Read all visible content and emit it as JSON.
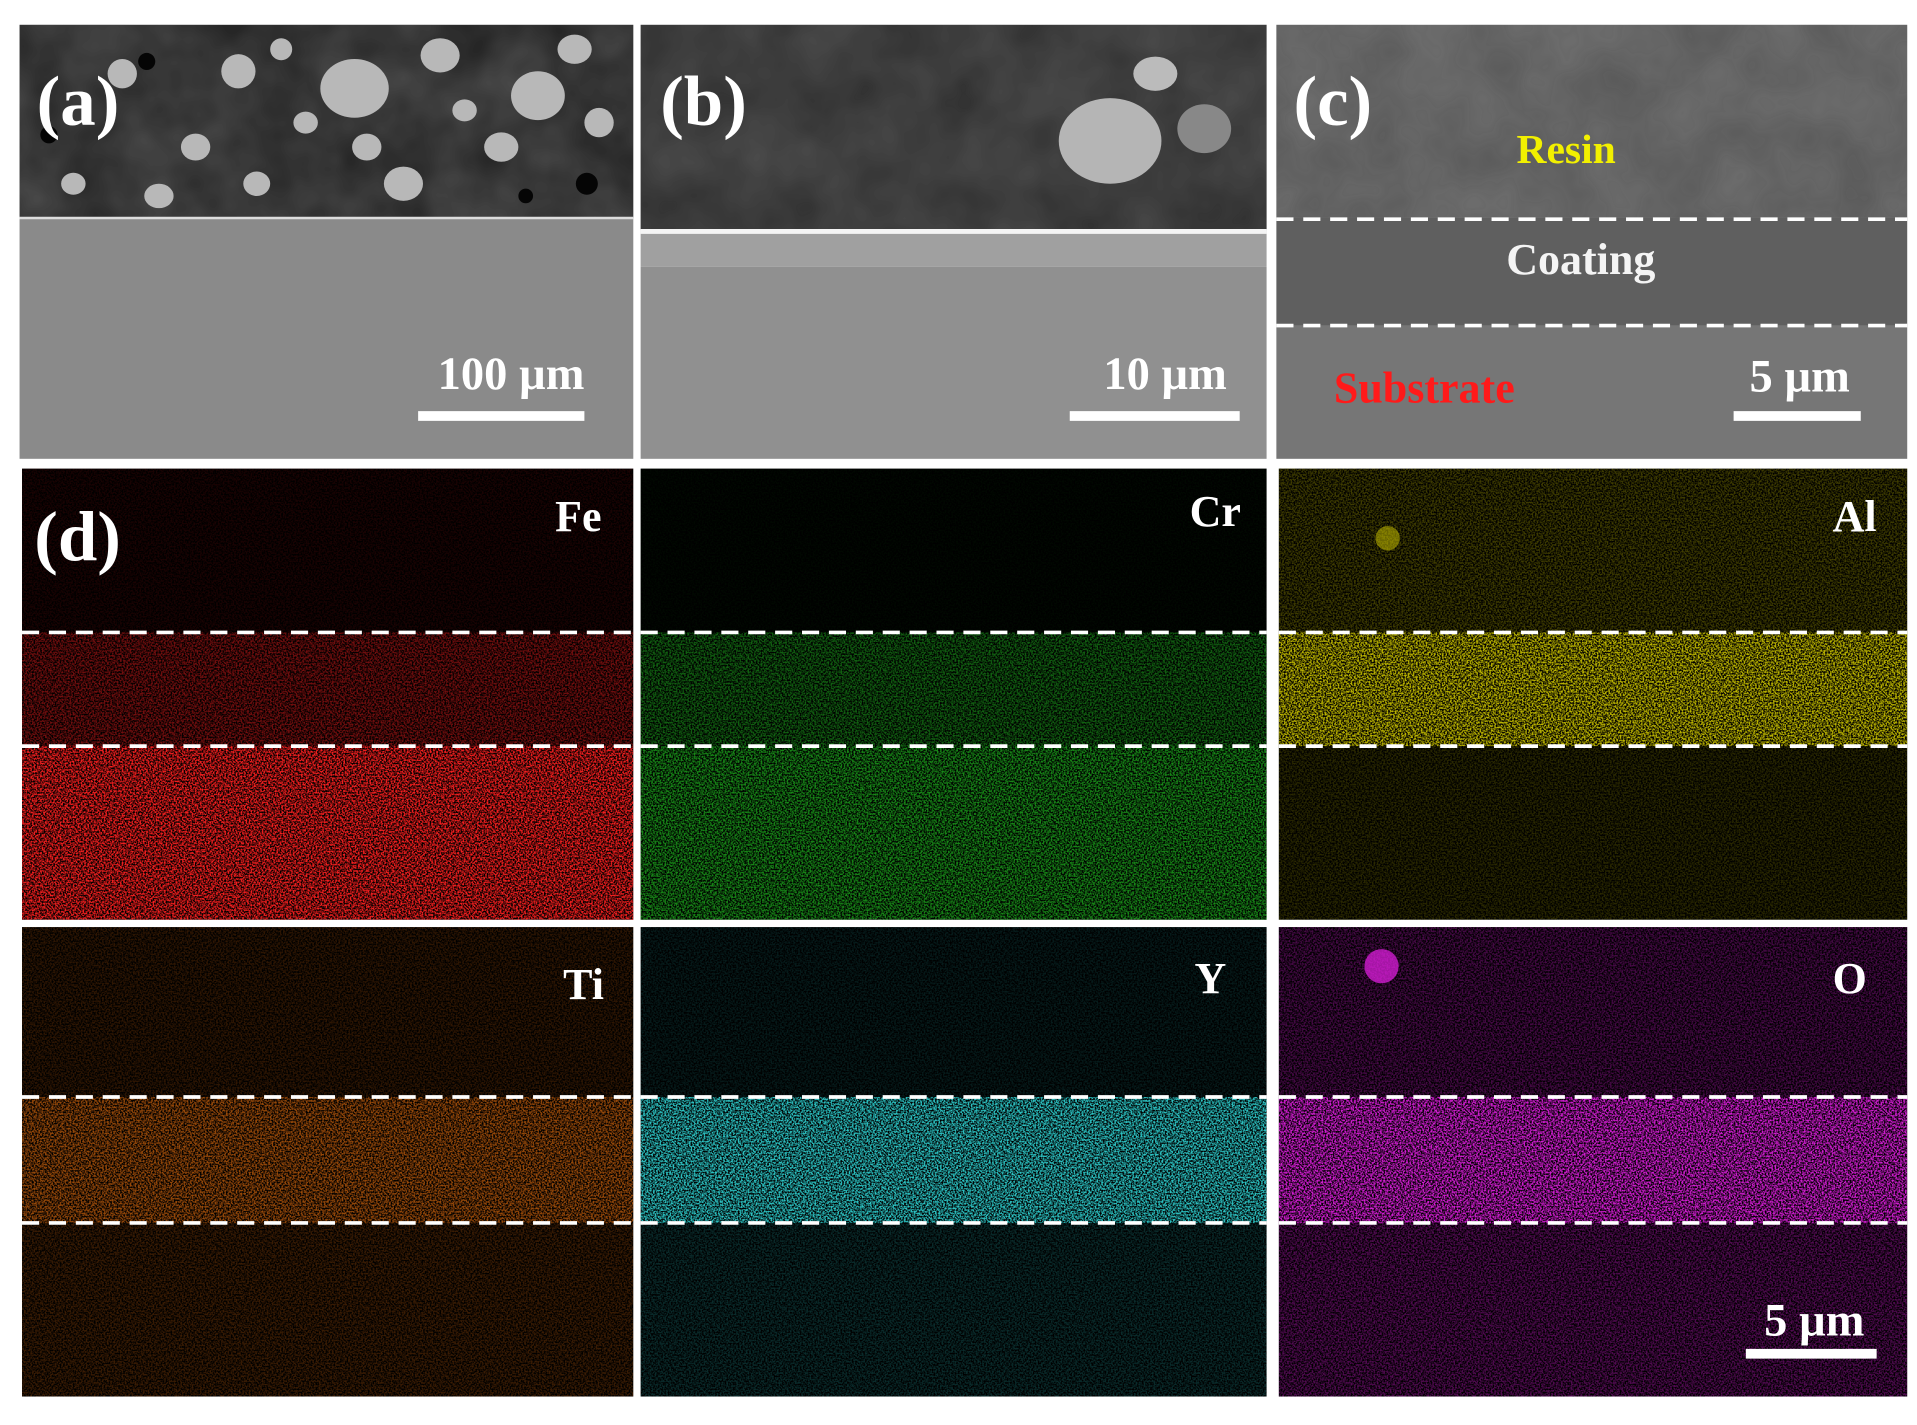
{
  "panels": [
    {
      "label": "(a)",
      "scale_bar": "100 µm"
    },
    {
      "label": "(b)",
      "scale_bar": "10 µm"
    },
    {
      "label": "(c)",
      "scale_bar": "5 µm",
      "layers": [
        "Resin",
        "Coating",
        "Substrate"
      ]
    },
    {
      "label": "(d)",
      "scale_bar": "5 µm",
      "elements": [
        "Fe",
        "Cr",
        "Al",
        "Ti",
        "Y",
        "O"
      ]
    }
  ]
}
